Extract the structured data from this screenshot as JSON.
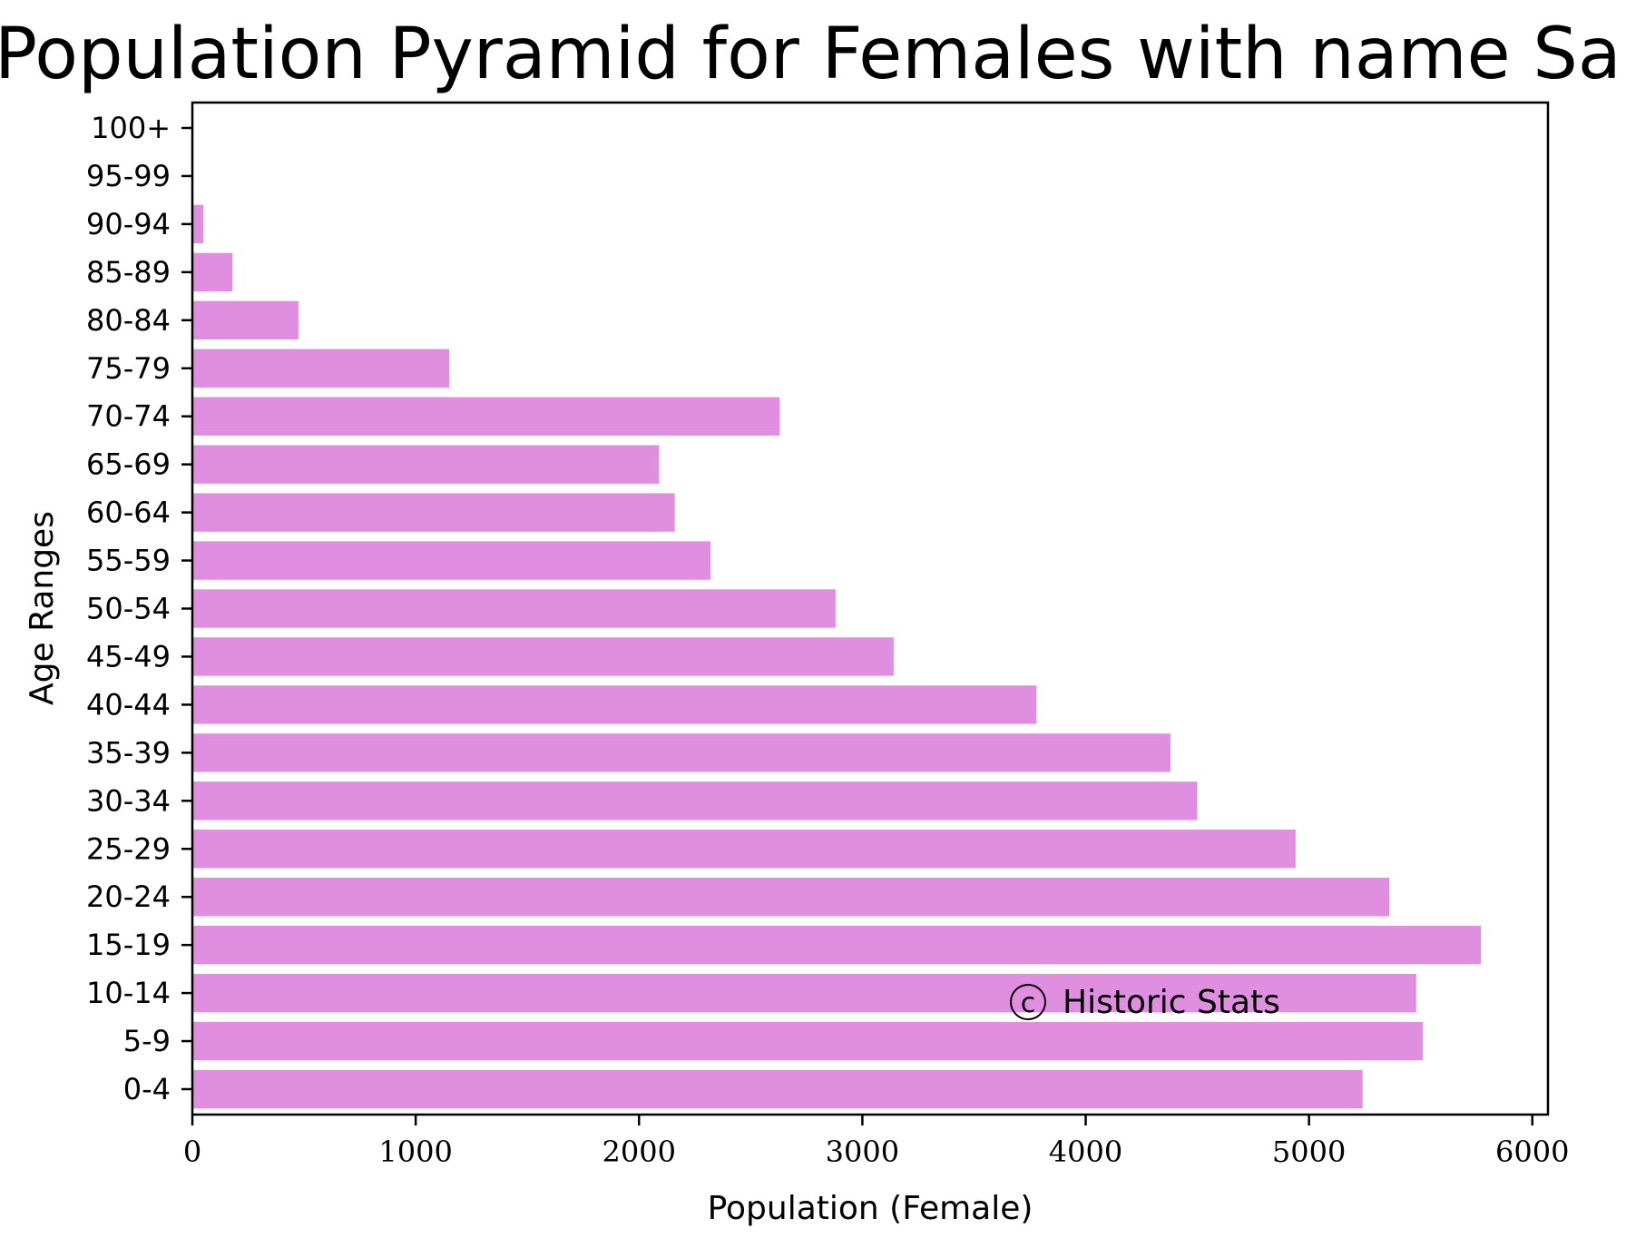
{
  "chart_data": {
    "type": "bar",
    "orientation": "horizontal",
    "title": "Population Pyramid for Females with name Sarah",
    "xlabel": "Population (Female)",
    "ylabel": "Age Ranges",
    "categories": [
      "100+",
      "95-99",
      "90-94",
      "85-89",
      "80-84",
      "75-79",
      "70-74",
      "65-69",
      "60-64",
      "55-59",
      "50-54",
      "45-49",
      "40-44",
      "35-39",
      "30-34",
      "25-29",
      "20-24",
      "15-19",
      "10-14",
      "5-9",
      "0-4"
    ],
    "values": [
      0,
      0,
      50,
      180,
      475,
      1150,
      2630,
      2090,
      2160,
      2320,
      2880,
      3140,
      3780,
      4380,
      4500,
      4940,
      5360,
      5770,
      5480,
      5510,
      5240
    ],
    "xlim": [
      0,
      6070
    ],
    "xticks": [
      0,
      1000,
      2000,
      3000,
      4000,
      5000,
      6000
    ],
    "grid": false,
    "bar_color": "#e08fe0",
    "watermark": "Historic Stats",
    "watermark_symbol": "c"
  }
}
